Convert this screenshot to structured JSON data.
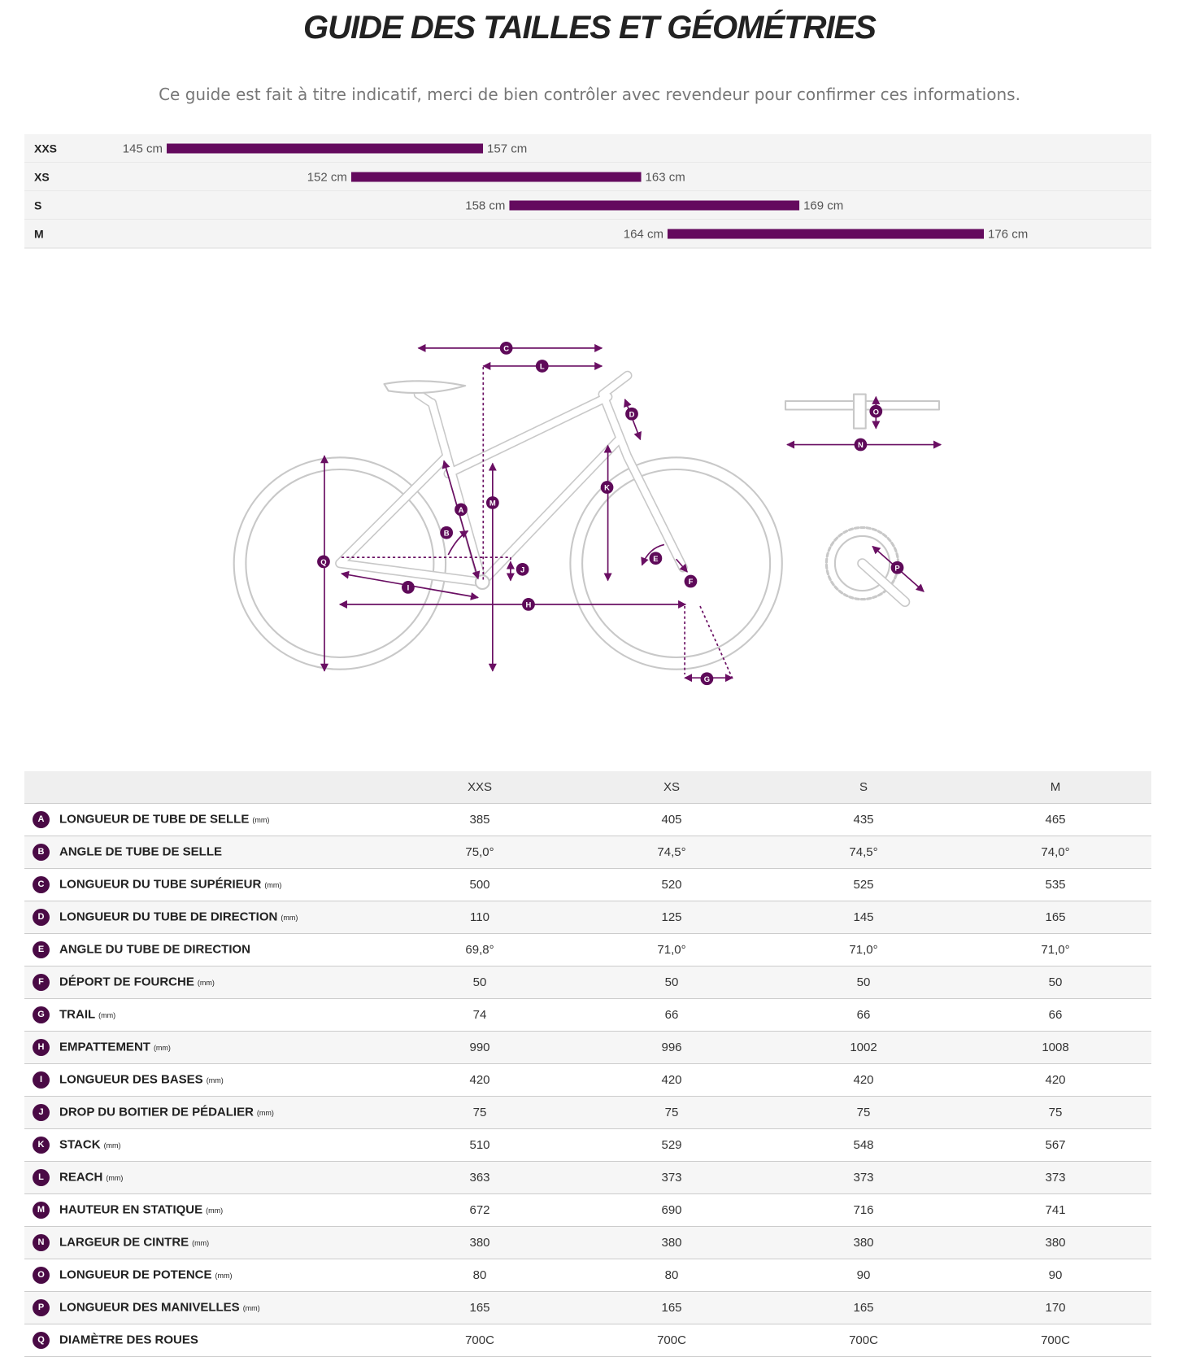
{
  "header": {
    "title": "GUIDE DES TAILLES ET GÉOMÉTRIES",
    "subtitle": "Ce guide est fait à titre indicatif, merci de bien contrôler avec revendeur pour confirmer ces informations."
  },
  "size_bars": {
    "rows": [
      {
        "size": "XXS",
        "min": {
          "value": 145,
          "label": "145 cm"
        },
        "max": {
          "value": 157,
          "label": "157 cm"
        }
      },
      {
        "size": "XS",
        "min": {
          "value": 152,
          "label": "152 cm"
        },
        "max": {
          "value": 163,
          "label": "163 cm"
        }
      },
      {
        "size": "S",
        "min": {
          "value": 158,
          "label": "158 cm"
        },
        "max": {
          "value": 169,
          "label": "169 cm"
        }
      },
      {
        "size": "M",
        "min": {
          "value": 164,
          "label": "164 cm"
        },
        "max": {
          "value": 176,
          "label": "176 cm"
        }
      }
    ]
  },
  "table": {
    "columns": [
      "XXS",
      "XS",
      "S",
      "M"
    ],
    "rows": [
      {
        "letter": "A",
        "name": "LONGUEUR DE TUBE DE SELLE",
        "unit": "(mm)",
        "values": [
          "385",
          "405",
          "435",
          "465"
        ]
      },
      {
        "letter": "B",
        "name": "ANGLE DE TUBE DE SELLE",
        "values": [
          "75,0°",
          "74,5°",
          "74,5°",
          "74,0°"
        ]
      },
      {
        "letter": "C",
        "name": "LONGUEUR DU TUBE SUPÉRIEUR",
        "unit": "(mm)",
        "values": [
          "500",
          "520",
          "525",
          "535"
        ]
      },
      {
        "letter": "D",
        "name": "LONGUEUR DU TUBE DE DIRECTION",
        "unit": "(mm)",
        "values": [
          "110",
          "125",
          "145",
          "165"
        ]
      },
      {
        "letter": "E",
        "name": "ANGLE DU TUBE DE DIRECTION",
        "values": [
          "69,8°",
          "71,0°",
          "71,0°",
          "71,0°"
        ]
      },
      {
        "letter": "F",
        "name": "DÉPORT DE FOURCHE",
        "unit": "(mm)",
        "values": [
          "50",
          "50",
          "50",
          "50"
        ]
      },
      {
        "letter": "G",
        "name": "TRAIL",
        "unit": "(mm)",
        "values": [
          "74",
          "66",
          "66",
          "66"
        ]
      },
      {
        "letter": "H",
        "name": "EMPATTEMENT",
        "unit": "(mm)",
        "values": [
          "990",
          "996",
          "1002",
          "1008"
        ]
      },
      {
        "letter": "I",
        "name": "LONGUEUR DES BASES",
        "unit": "(mm)",
        "values": [
          "420",
          "420",
          "420",
          "420"
        ]
      },
      {
        "letter": "J",
        "name": "DROP DU BOITIER DE PÉDALIER",
        "unit": "(mm)",
        "values": [
          "75",
          "75",
          "75",
          "75"
        ]
      },
      {
        "letter": "K",
        "name": "STACK",
        "unit": "(mm)",
        "values": [
          "510",
          "529",
          "548",
          "567"
        ]
      },
      {
        "letter": "L",
        "name": "REACH",
        "unit": "(mm)",
        "values": [
          "363",
          "373",
          "373",
          "373"
        ]
      },
      {
        "letter": "M",
        "name": "HAUTEUR EN STATIQUE",
        "unit": "(mm)",
        "values": [
          "672",
          "690",
          "716",
          "741"
        ]
      },
      {
        "letter": "N",
        "name": "LARGEUR DE CINTRE",
        "unit": "(mm)",
        "values": [
          "380",
          "380",
          "380",
          "380"
        ]
      },
      {
        "letter": "O",
        "name": "LONGUEUR DE POTENCE",
        "unit": "(mm)",
        "values": [
          "80",
          "80",
          "90",
          "90"
        ]
      },
      {
        "letter": "P",
        "name": "LONGUEUR DES MANIVELLES",
        "unit": "(mm)",
        "values": [
          "165",
          "165",
          "165",
          "170"
        ]
      },
      {
        "letter": "Q",
        "name": "DIAMÈTRE DES ROUES",
        "values": [
          "700C",
          "700C",
          "700C",
          "700C"
        ]
      }
    ]
  }
}
